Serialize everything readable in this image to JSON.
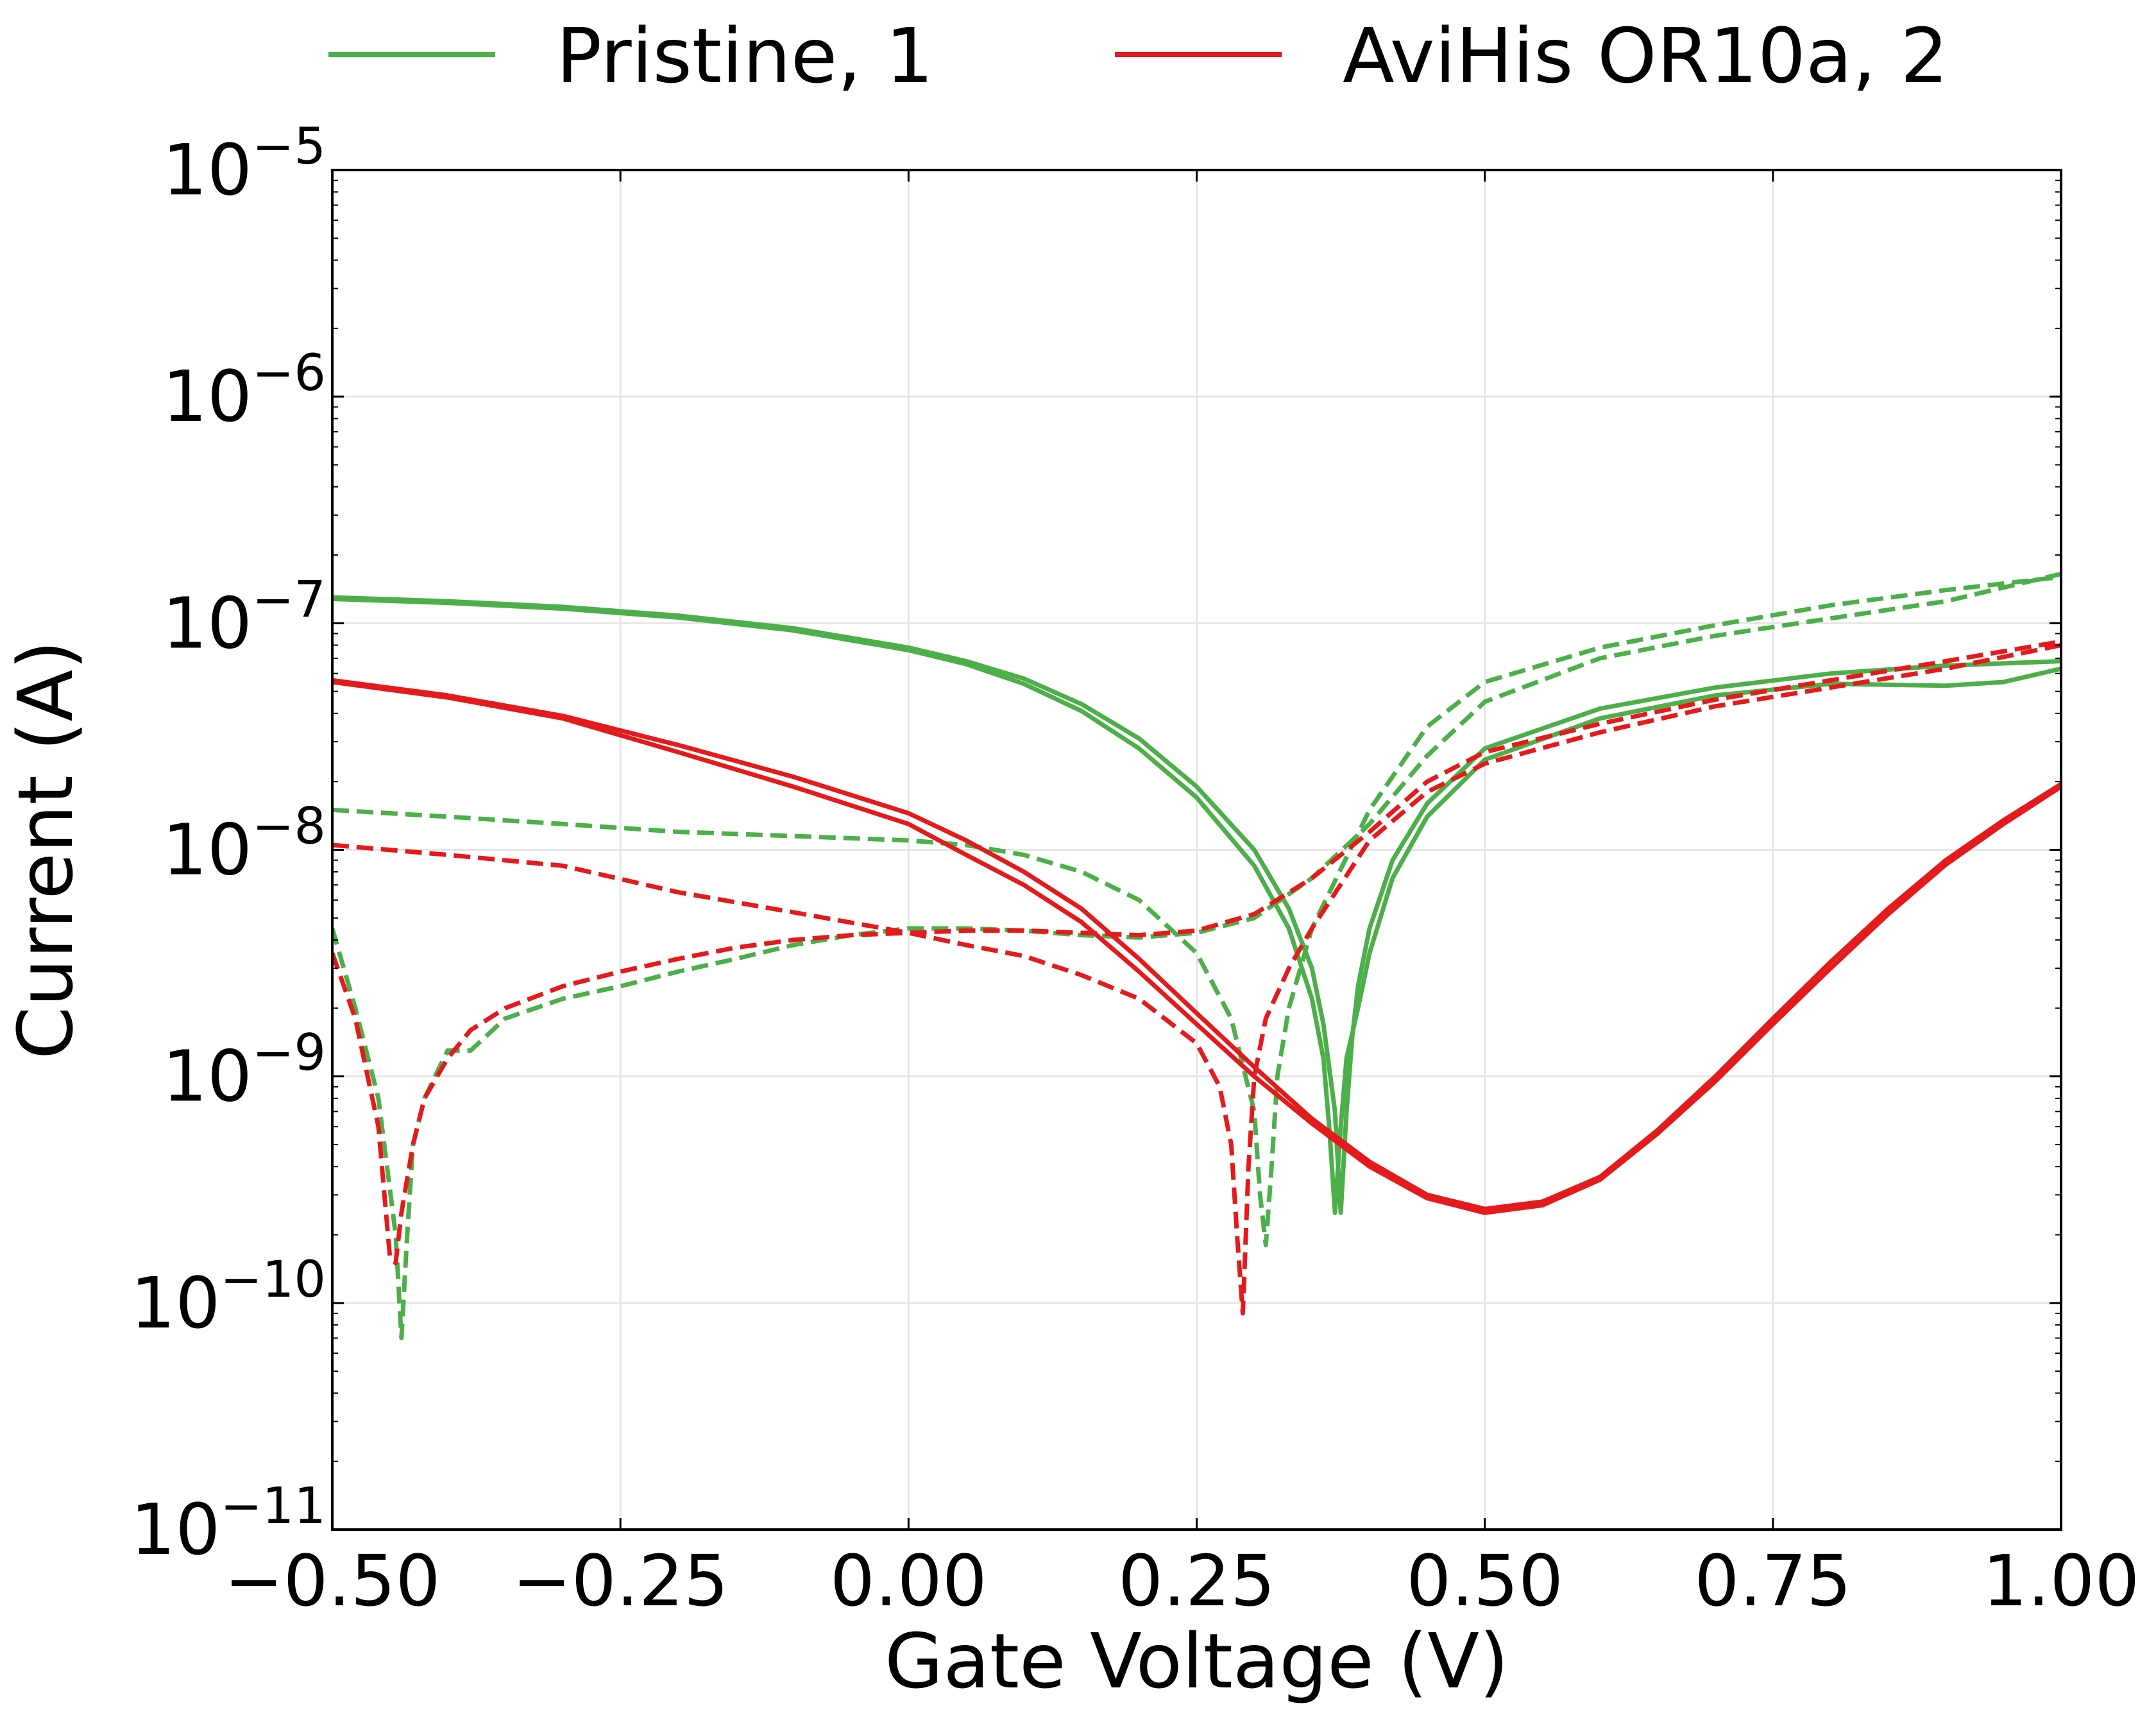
{
  "chart_data": {
    "type": "line",
    "title": "",
    "xlabel": "Gate Voltage (V)",
    "ylabel": "Current (A)",
    "xlim": [
      -0.5,
      1.0
    ],
    "ylim": [
      1e-11,
      1e-05
    ],
    "yscale": "log",
    "grid": true,
    "legend_position": "top, above plot",
    "x_ticks": [
      -0.5,
      -0.25,
      0.0,
      0.25,
      0.5,
      0.75,
      1.0
    ],
    "x_tick_labels": [
      "−0.50",
      "−0.25",
      "0.00",
      "0.25",
      "0.50",
      "0.75",
      "1.00"
    ],
    "y_ticks": [
      {
        "value": 1e-05,
        "base": "10",
        "exp": "−5"
      },
      {
        "value": 1e-06,
        "base": "10",
        "exp": "−6"
      },
      {
        "value": 1e-07,
        "base": "10",
        "exp": "−7"
      },
      {
        "value": 1e-08,
        "base": "10",
        "exp": "−8"
      },
      {
        "value": 1e-09,
        "base": "10",
        "exp": "−9"
      },
      {
        "value": 1e-10,
        "base": "10",
        "exp": "−10"
      },
      {
        "value": 1e-11,
        "base": "10",
        "exp": "−11"
      }
    ],
    "legend": [
      {
        "label": "Pristine, 1",
        "color": "#4daf4a"
      },
      {
        "label": "AviHis OR10a, 2",
        "color": "#e41a1c"
      }
    ],
    "series": [
      {
        "name": "Pristine, 1",
        "style": "solid",
        "color": "#4daf4a",
        "x": [
          -0.5,
          -0.4,
          -0.3,
          -0.2,
          -0.1,
          0.0,
          0.05,
          0.1,
          0.15,
          0.2,
          0.25,
          0.3,
          0.33,
          0.35,
          0.36,
          0.37,
          0.375,
          0.38,
          0.385,
          0.39,
          0.4,
          0.42,
          0.45,
          0.5,
          0.6,
          0.7,
          0.8,
          0.9,
          1.0
        ],
        "y": [
          1.3e-07,
          1.25e-07,
          1.18e-07,
          1.08e-07,
          9.5e-08,
          7.8e-08,
          6.8e-08,
          5.7e-08,
          4.4e-08,
          3.1e-08,
          1.9e-08,
          1e-08,
          5.5e-09,
          3e-09,
          1.7e-09,
          7e-10,
          2.5e-10,
          7e-10,
          1.5e-09,
          2.5e-09,
          4.5e-09,
          9e-09,
          1.6e-08,
          2.8e-08,
          4.2e-08,
          5.2e-08,
          6e-08,
          6.5e-08,
          6.8e-08
        ]
      },
      {
        "name": "Pristine, 1",
        "style": "solid",
        "color": "#4daf4a",
        "x": [
          -0.5,
          -0.4,
          -0.3,
          -0.2,
          -0.1,
          0.0,
          0.05,
          0.1,
          0.15,
          0.2,
          0.25,
          0.3,
          0.33,
          0.35,
          0.36,
          0.365,
          0.37,
          0.375,
          0.38,
          0.39,
          0.4,
          0.42,
          0.45,
          0.5,
          0.6,
          0.7,
          0.8,
          0.9,
          0.95,
          1.0
        ],
        "y": [
          1.28e-07,
          1.23e-07,
          1.16e-07,
          1.06e-07,
          9.3e-08,
          7.6e-08,
          6.6e-08,
          5.4e-08,
          4.1e-08,
          2.8e-08,
          1.7e-08,
          8.5e-09,
          4.5e-09,
          2.2e-09,
          1.2e-09,
          6e-10,
          2.5e-10,
          6e-10,
          1.2e-09,
          2e-09,
          3.5e-09,
          7.5e-09,
          1.4e-08,
          2.5e-08,
          3.8e-08,
          4.8e-08,
          5.4e-08,
          5.3e-08,
          5.5e-08,
          6.3e-08
        ]
      },
      {
        "name": "Pristine, 1",
        "style": "dashed",
        "color": "#4daf4a",
        "x": [
          -0.5,
          -0.4,
          -0.3,
          -0.2,
          -0.1,
          0.0,
          0.05,
          0.1,
          0.15,
          0.2,
          0.25,
          0.28,
          0.3,
          0.305,
          0.31,
          0.315,
          0.32,
          0.33,
          0.35,
          0.4,
          0.45,
          0.5,
          0.6,
          0.7,
          0.8,
          0.9,
          1.0
        ],
        "y": [
          1.5e-08,
          1.4e-08,
          1.3e-08,
          1.2e-08,
          1.15e-08,
          1.1e-08,
          1.05e-08,
          9.5e-09,
          8e-09,
          6e-09,
          3.5e-09,
          1.8e-09,
          7e-10,
          3e-10,
          1.8e-10,
          4e-10,
          1e-09,
          2e-09,
          4.5e-09,
          1.5e-08,
          3.5e-08,
          5.5e-08,
          7.8e-08,
          9.8e-08,
          1.2e-07,
          1.4e-07,
          1.6e-07
        ]
      },
      {
        "name": "Pristine, 1",
        "style": "dashed",
        "color": "#4daf4a",
        "x": [
          -0.5,
          -0.48,
          -0.46,
          -0.445,
          -0.44,
          -0.435,
          -0.43,
          -0.42,
          -0.4,
          -0.38,
          -0.35,
          -0.3,
          -0.25,
          -0.2,
          -0.15,
          -0.1,
          -0.05,
          0.0,
          0.05,
          0.1,
          0.15,
          0.2,
          0.25,
          0.3,
          0.35,
          0.4,
          0.45,
          0.5,
          0.6,
          0.7,
          0.8,
          0.9,
          1.0
        ],
        "y": [
          4.5e-09,
          2e-09,
          8e-10,
          2e-10,
          7e-11,
          2e-10,
          5e-10,
          8e-10,
          1.3e-09,
          1.3e-09,
          1.8e-09,
          2.2e-09,
          2.5e-09,
          2.9e-09,
          3.3e-09,
          3.8e-09,
          4.2e-09,
          4.5e-09,
          4.5e-09,
          4.4e-09,
          4.2e-09,
          4.1e-09,
          4.3e-09,
          5e-09,
          7.5e-09,
          1.3e-08,
          2.6e-08,
          4.5e-08,
          7e-08,
          8.8e-08,
          1.05e-07,
          1.25e-07,
          1.65e-07
        ]
      },
      {
        "name": "AviHis OR10a, 2",
        "style": "solid",
        "color": "#e41a1c",
        "x": [
          -0.5,
          -0.4,
          -0.3,
          -0.2,
          -0.1,
          0.0,
          0.05,
          0.1,
          0.15,
          0.2,
          0.25,
          0.3,
          0.35,
          0.4,
          0.45,
          0.5,
          0.55,
          0.6,
          0.65,
          0.7,
          0.75,
          0.8,
          0.85,
          0.9,
          0.95,
          1.0
        ],
        "y": [
          5.6e-08,
          4.8e-08,
          3.9e-08,
          2.9e-08,
          2.1e-08,
          1.45e-08,
          1.1e-08,
          8e-09,
          5.5e-09,
          3.3e-09,
          1.9e-09,
          1.1e-09,
          6.5e-10,
          4.2e-10,
          3e-10,
          2.6e-10,
          2.8e-10,
          3.6e-10,
          5.8e-10,
          1e-09,
          1.8e-09,
          3.2e-09,
          5.5e-09,
          9e-09,
          1.35e-08,
          1.95e-08
        ]
      },
      {
        "name": "AviHis OR10a, 2",
        "style": "solid",
        "color": "#e41a1c",
        "x": [
          -0.5,
          -0.4,
          -0.3,
          -0.2,
          -0.1,
          0.0,
          0.05,
          0.1,
          0.15,
          0.2,
          0.25,
          0.3,
          0.35,
          0.4,
          0.45,
          0.5,
          0.55,
          0.6,
          0.65,
          0.7,
          0.75,
          0.8,
          0.85,
          0.9,
          0.95,
          1.0
        ],
        "y": [
          5.5e-08,
          4.7e-08,
          3.8e-08,
          2.7e-08,
          1.9e-08,
          1.3e-08,
          9.5e-09,
          7e-09,
          4.8e-09,
          2.9e-09,
          1.7e-09,
          1e-09,
          6.2e-10,
          4e-10,
          2.9e-10,
          2.5e-10,
          2.7e-10,
          3.5e-10,
          5.6e-10,
          9.5e-10,
          1.7e-09,
          3e-09,
          5.2e-09,
          8.6e-09,
          1.3e-08,
          1.9e-08
        ]
      },
      {
        "name": "AviHis OR10a, 2",
        "style": "dashed",
        "color": "#e41a1c",
        "x": [
          -0.5,
          -0.4,
          -0.3,
          -0.2,
          -0.1,
          0.0,
          0.05,
          0.1,
          0.15,
          0.2,
          0.25,
          0.27,
          0.28,
          0.285,
          0.29,
          0.295,
          0.3,
          0.31,
          0.33,
          0.35,
          0.4,
          0.45,
          0.5,
          0.6,
          0.7,
          0.8,
          0.9,
          1.0
        ],
        "y": [
          1.05e-08,
          9.5e-09,
          8.5e-09,
          6.5e-09,
          5.3e-09,
          4.3e-09,
          3.8e-09,
          3.4e-09,
          2.8e-09,
          2.2e-09,
          1.4e-09,
          9e-10,
          5e-10,
          2e-10,
          9e-11,
          4e-10,
          1e-09,
          1.8e-09,
          3e-09,
          4.5e-09,
          1.1e-08,
          1.8e-08,
          2.4e-08,
          3.3e-08,
          4.3e-08,
          5.2e-08,
          6.3e-08,
          8e-08
        ]
      },
      {
        "name": "AviHis OR10a, 2",
        "style": "dashed",
        "color": "#e41a1c",
        "x": [
          -0.5,
          -0.48,
          -0.46,
          -0.45,
          -0.445,
          -0.44,
          -0.43,
          -0.42,
          -0.4,
          -0.38,
          -0.35,
          -0.3,
          -0.25,
          -0.2,
          -0.15,
          -0.1,
          -0.05,
          0.0,
          0.05,
          0.1,
          0.15,
          0.2,
          0.25,
          0.3,
          0.35,
          0.4,
          0.45,
          0.5,
          0.6,
          0.7,
          0.8,
          0.9,
          1.0
        ],
        "y": [
          3.5e-09,
          1.8e-09,
          6e-10,
          1.6e-10,
          1.5e-10,
          2.5e-10,
          5e-10,
          8e-10,
          1.2e-09,
          1.6e-09,
          2e-09,
          2.5e-09,
          2.9e-09,
          3.3e-09,
          3.7e-09,
          4e-09,
          4.2e-09,
          4.3e-09,
          4.4e-09,
          4.4e-09,
          4.3e-09,
          4.2e-09,
          4.4e-09,
          5.2e-09,
          7.5e-09,
          1.2e-08,
          2e-08,
          2.7e-08,
          3.6e-08,
          4.6e-08,
          5.6e-08,
          6.8e-08,
          8.3e-08
        ]
      }
    ]
  }
}
